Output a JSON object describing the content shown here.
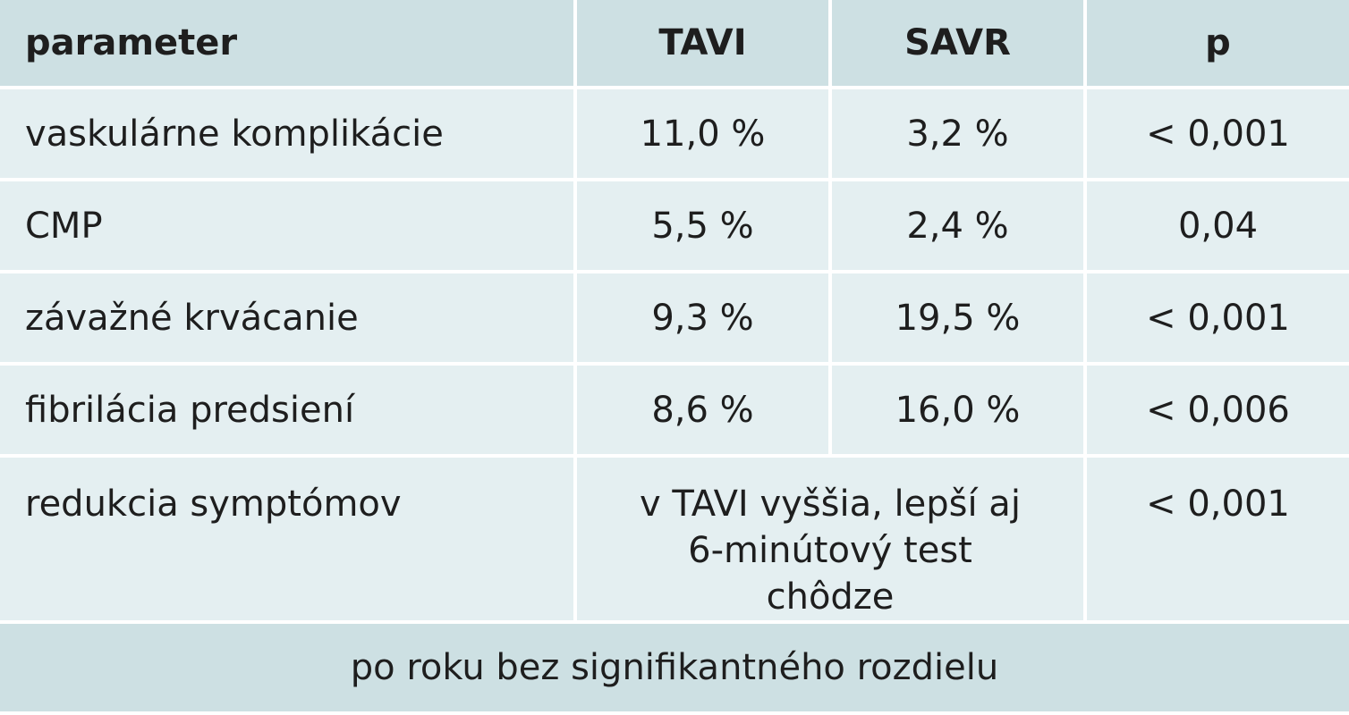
{
  "table": {
    "header": [
      "parameter",
      "TAVI",
      "SAVR",
      "p"
    ],
    "rows": [
      [
        "vaskulárne komplikácie",
        "11,0 %",
        "3,2 %",
        "< 0,001"
      ],
      [
        "CMP",
        "5,5 %",
        "2,4 %",
        "0,04"
      ],
      [
        "závažné krvácanie",
        "9,3 %",
        "19,5 %",
        "< 0,001"
      ],
      [
        "fibrilácia predsiení",
        "8,6 %",
        "16,0 %",
        "< 0,006"
      ],
      [
        "redukcia symptómov",
        "v TAVI vyššia, lepší aj 6-minútový test chôdze",
        "< 0,001"
      ]
    ],
    "footer": "po roku bez signifikantného rozdielu"
  }
}
